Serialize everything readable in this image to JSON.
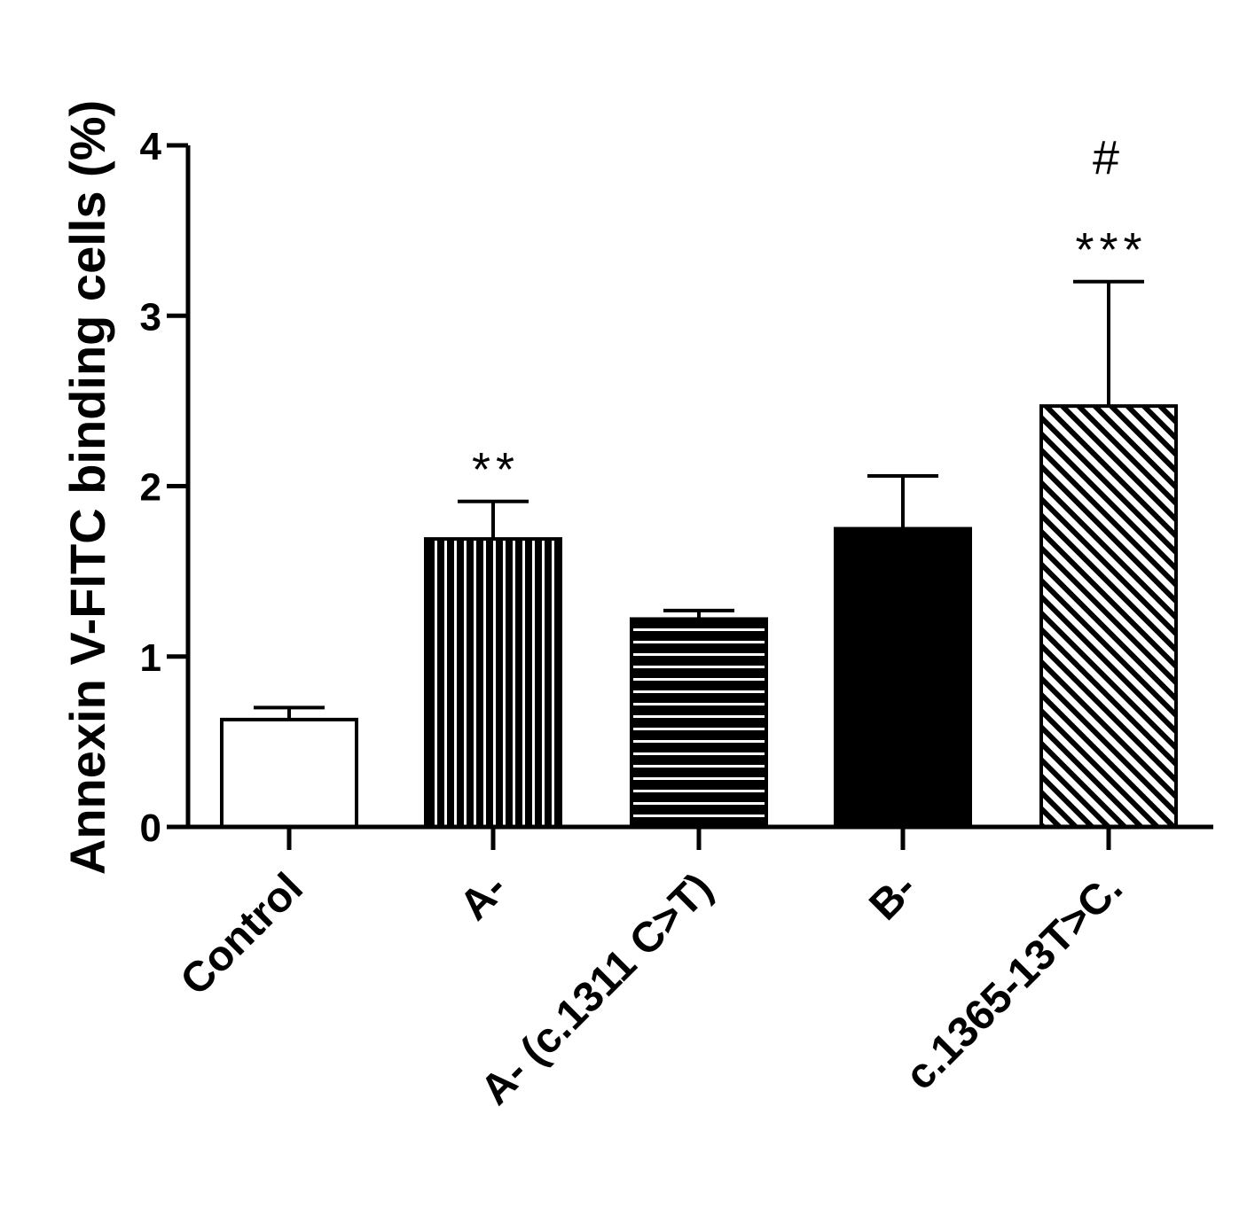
{
  "chart_data": {
    "type": "bar",
    "ylabel": "Annexin V-FITC binding cells (%)",
    "xlabel": "",
    "ylim": [
      0,
      4
    ],
    "yticks": [
      0,
      1,
      2,
      3,
      4
    ],
    "categories": [
      "Control",
      "A-",
      "A- (c.1311 C>T)",
      "B-",
      "c.1365-13T>C."
    ],
    "values": [
      0.63,
      1.69,
      1.22,
      1.75,
      2.47
    ],
    "errors": [
      0.07,
      0.22,
      0.05,
      0.31,
      0.73
    ],
    "fills": [
      "white",
      "vertical-stripes",
      "horizontal-stripes",
      "black",
      "diagonal-stripes"
    ],
    "annotations": [
      "",
      "**",
      "",
      "",
      "***"
    ],
    "annotations_top": [
      "",
      "",
      "",
      "",
      "#"
    ],
    "grid": false,
    "legend": "none"
  }
}
